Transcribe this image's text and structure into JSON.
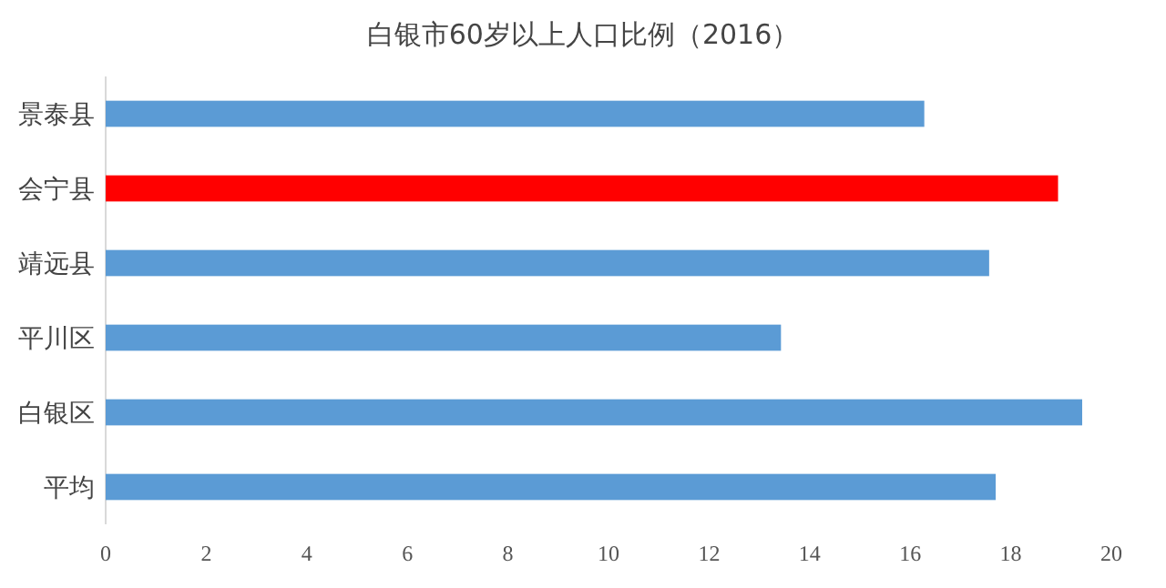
{
  "chart_data": {
    "type": "bar",
    "orientation": "horizontal",
    "title": "白银市60岁以上人口比例（2016）",
    "categories": [
      "景泰县",
      "会宁县",
      "靖远县",
      "平川区",
      "白银区",
      "平均"
    ],
    "values": [
      16.28,
      18.94,
      17.57,
      13.43,
      19.42,
      17.7
    ],
    "colors": [
      "#5b9bd5",
      "#ff0000",
      "#5b9bd5",
      "#5b9bd5",
      "#5b9bd5",
      "#5b9bd5"
    ],
    "xlim": [
      0,
      20
    ],
    "xticks": [
      0,
      2,
      4,
      6,
      8,
      10,
      12,
      14,
      16,
      18,
      20
    ]
  }
}
